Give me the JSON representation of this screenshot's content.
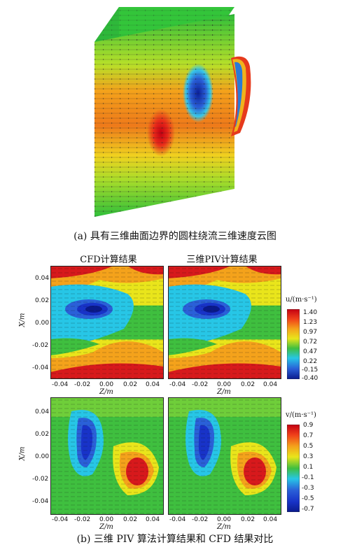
{
  "caption_a": "(a) 具有三维曲面边界的圆柱绕流三维速度云图",
  "caption_b": "(b) 三维 PIV 算法计算结果和 CFD 结果对比",
  "col_titles": [
    "CFD计算结果",
    "三维PIV计算结果"
  ],
  "axes": {
    "xlabel": "Z/m",
    "ylabel": "X/m",
    "x_ticks": [
      "-0.04",
      "-0.02",
      "0.00",
      "0.02",
      "0.04"
    ],
    "y_ticks": [
      "0.04",
      "0.02",
      "0.00",
      "-0.02",
      "-0.04"
    ]
  },
  "colorbar_u": {
    "title": "u/(m·s⁻¹)",
    "ticks": [
      "1.40",
      "1.23",
      "0.97",
      "0.72",
      "0.47",
      "0.22",
      "-0.15",
      "-0.40"
    ]
  },
  "colorbar_v": {
    "title": "v/(m·s⁻¹)",
    "ticks": [
      "0.9",
      "0.7",
      "0.5",
      "0.3",
      "0.1",
      "-0.1",
      "-0.3",
      "-0.5",
      "-0.7"
    ]
  },
  "colors": {
    "red": "#d7191c",
    "orange": "#f4a21b",
    "yellow": "#e9e51b",
    "green": "#3fbf3f",
    "cyan": "#27c6e6",
    "blue": "#1833c8",
    "navy": "#0a1a8c"
  }
}
